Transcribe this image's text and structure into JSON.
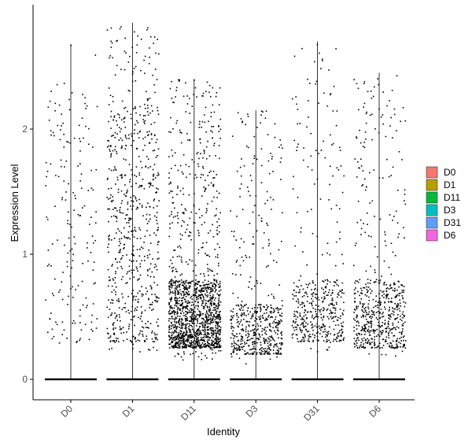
{
  "chart_data": {
    "type": "violin-jitter",
    "xlabel": "Identity",
    "ylabel": "Expression Level",
    "ylim": [
      -0.18,
      2.98
    ],
    "yticks": [
      0,
      1,
      2
    ],
    "categories": [
      "D0",
      "D1",
      "D11",
      "D3",
      "D31",
      "D6"
    ],
    "legend": {
      "position": "right",
      "entries": [
        {
          "label": "D0",
          "color": "#F8766D"
        },
        {
          "label": "D1",
          "color": "#B79F00"
        },
        {
          "label": "D11",
          "color": "#00BA38"
        },
        {
          "label": "D3",
          "color": "#00BFC4"
        },
        {
          "label": "D31",
          "color": "#619CFF"
        },
        {
          "label": "D6",
          "color": "#F564E3"
        }
      ]
    },
    "series": [
      {
        "name": "D0",
        "max": 2.68,
        "nonzero_range": [
          0.25,
          2.68
        ],
        "dense_range": [
          0.3,
          2.4
        ],
        "nonzero_points": 180
      },
      {
        "name": "D1",
        "max": 2.85,
        "nonzero_range": [
          0.2,
          2.85
        ],
        "dense_range": [
          0.3,
          2.2
        ],
        "nonzero_points": 700
      },
      {
        "name": "D11",
        "max": 2.4,
        "nonzero_range": [
          0.15,
          2.4
        ],
        "dense_range": [
          0.25,
          0.8
        ],
        "nonzero_points": 1500
      },
      {
        "name": "D3",
        "max": 2.15,
        "nonzero_range": [
          0.12,
          2.15
        ],
        "dense_range": [
          0.2,
          0.6
        ],
        "nonzero_points": 550
      },
      {
        "name": "D31",
        "max": 2.7,
        "nonzero_range": [
          0.2,
          2.7
        ],
        "dense_range": [
          0.3,
          0.8
        ],
        "nonzero_points": 450
      },
      {
        "name": "D6",
        "max": 2.45,
        "nonzero_range": [
          0.18,
          2.45
        ],
        "dense_range": [
          0.25,
          0.8
        ],
        "nonzero_points": 600
      }
    ],
    "zero_value": 0,
    "grid": false
  }
}
